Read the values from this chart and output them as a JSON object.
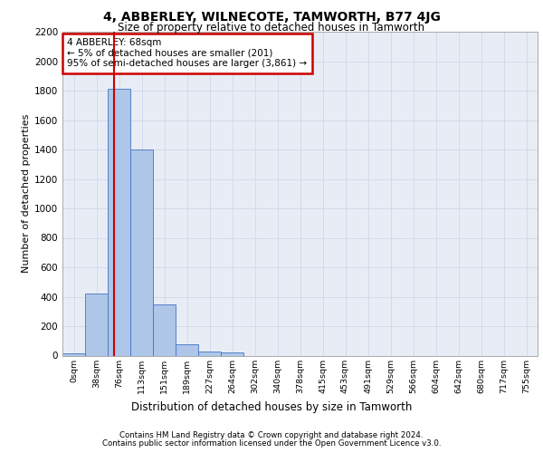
{
  "title": "4, ABBERLEY, WILNECOTE, TAMWORTH, B77 4JG",
  "subtitle": "Size of property relative to detached houses in Tamworth",
  "xlabel": "Distribution of detached houses by size in Tamworth",
  "ylabel": "Number of detached properties",
  "bar_labels": [
    "0sqm",
    "38sqm",
    "76sqm",
    "113sqm",
    "151sqm",
    "189sqm",
    "227sqm",
    "264sqm",
    "302sqm",
    "340sqm",
    "378sqm",
    "415sqm",
    "453sqm",
    "491sqm",
    "529sqm",
    "566sqm",
    "604sqm",
    "642sqm",
    "680sqm",
    "717sqm",
    "755sqm"
  ],
  "bar_values": [
    15,
    420,
    1810,
    1400,
    350,
    80,
    25,
    20,
    0,
    0,
    0,
    0,
    0,
    0,
    0,
    0,
    0,
    0,
    0,
    0,
    0
  ],
  "bar_color": "#aec6e8",
  "bar_edge_color": "#4472c4",
  "grid_color": "#d0d8e8",
  "background_color": "#e8edf5",
  "annotation_text": "4 ABBERLEY: 68sqm\n← 5% of detached houses are smaller (201)\n95% of semi-detached houses are larger (3,861) →",
  "annotation_box_color": "#cc0000",
  "vline_x": 1.789,
  "vline_color": "#cc0000",
  "ylim": [
    0,
    2200
  ],
  "yticks": [
    0,
    200,
    400,
    600,
    800,
    1000,
    1200,
    1400,
    1600,
    1800,
    2000,
    2200
  ],
  "footer_line1": "Contains HM Land Registry data © Crown copyright and database right 2024.",
  "footer_line2": "Contains public sector information licensed under the Open Government Licence v3.0."
}
